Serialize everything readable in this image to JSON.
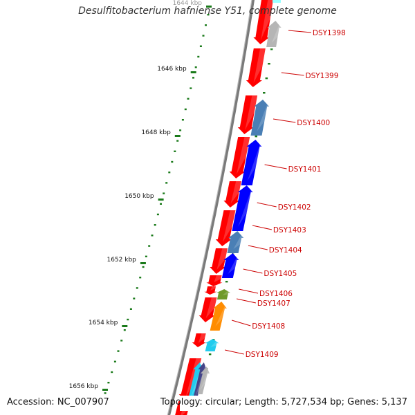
{
  "title": "Desulfitobacterium hafniense Y51, complete genome",
  "footer": {
    "accession": "Accession: NC_007907",
    "summary": "Topology: circular; Length: 5,727,534 bp; Genes: 5,137"
  },
  "colors": {
    "backbone": "#7a7a7a",
    "forward": "#ff0000",
    "reverse_blue": "#0000ff",
    "reverse_steel": "#4a7fb5",
    "reverse_gray": "#b5b5b5",
    "olive": "#6f9a2a",
    "orange": "#ff8c00",
    "cyan": "#22ccee",
    "tick": "#1a7a1a",
    "label": "#cc0000"
  },
  "ticks": [
    {
      "label": "1644 kbp"
    },
    {
      "label": "1646 kbp"
    },
    {
      "label": "1648 kbp"
    },
    {
      "label": "1650 kbp"
    },
    {
      "label": "1652 kbp"
    },
    {
      "label": "1654 kbp"
    },
    {
      "label": "1656 kbp"
    }
  ],
  "genes": [
    {
      "label": "DSY1398"
    },
    {
      "label": "DSY1399"
    },
    {
      "label": "DSY1400"
    },
    {
      "label": "DSY1401"
    },
    {
      "label": "DSY1402"
    },
    {
      "label": "DSY1403"
    },
    {
      "label": "DSY1404"
    },
    {
      "label": "DSY1405"
    },
    {
      "label": "DSY1406"
    },
    {
      "label": "DSY1407"
    },
    {
      "label": "DSY1408"
    },
    {
      "label": "DSY1409"
    }
  ]
}
